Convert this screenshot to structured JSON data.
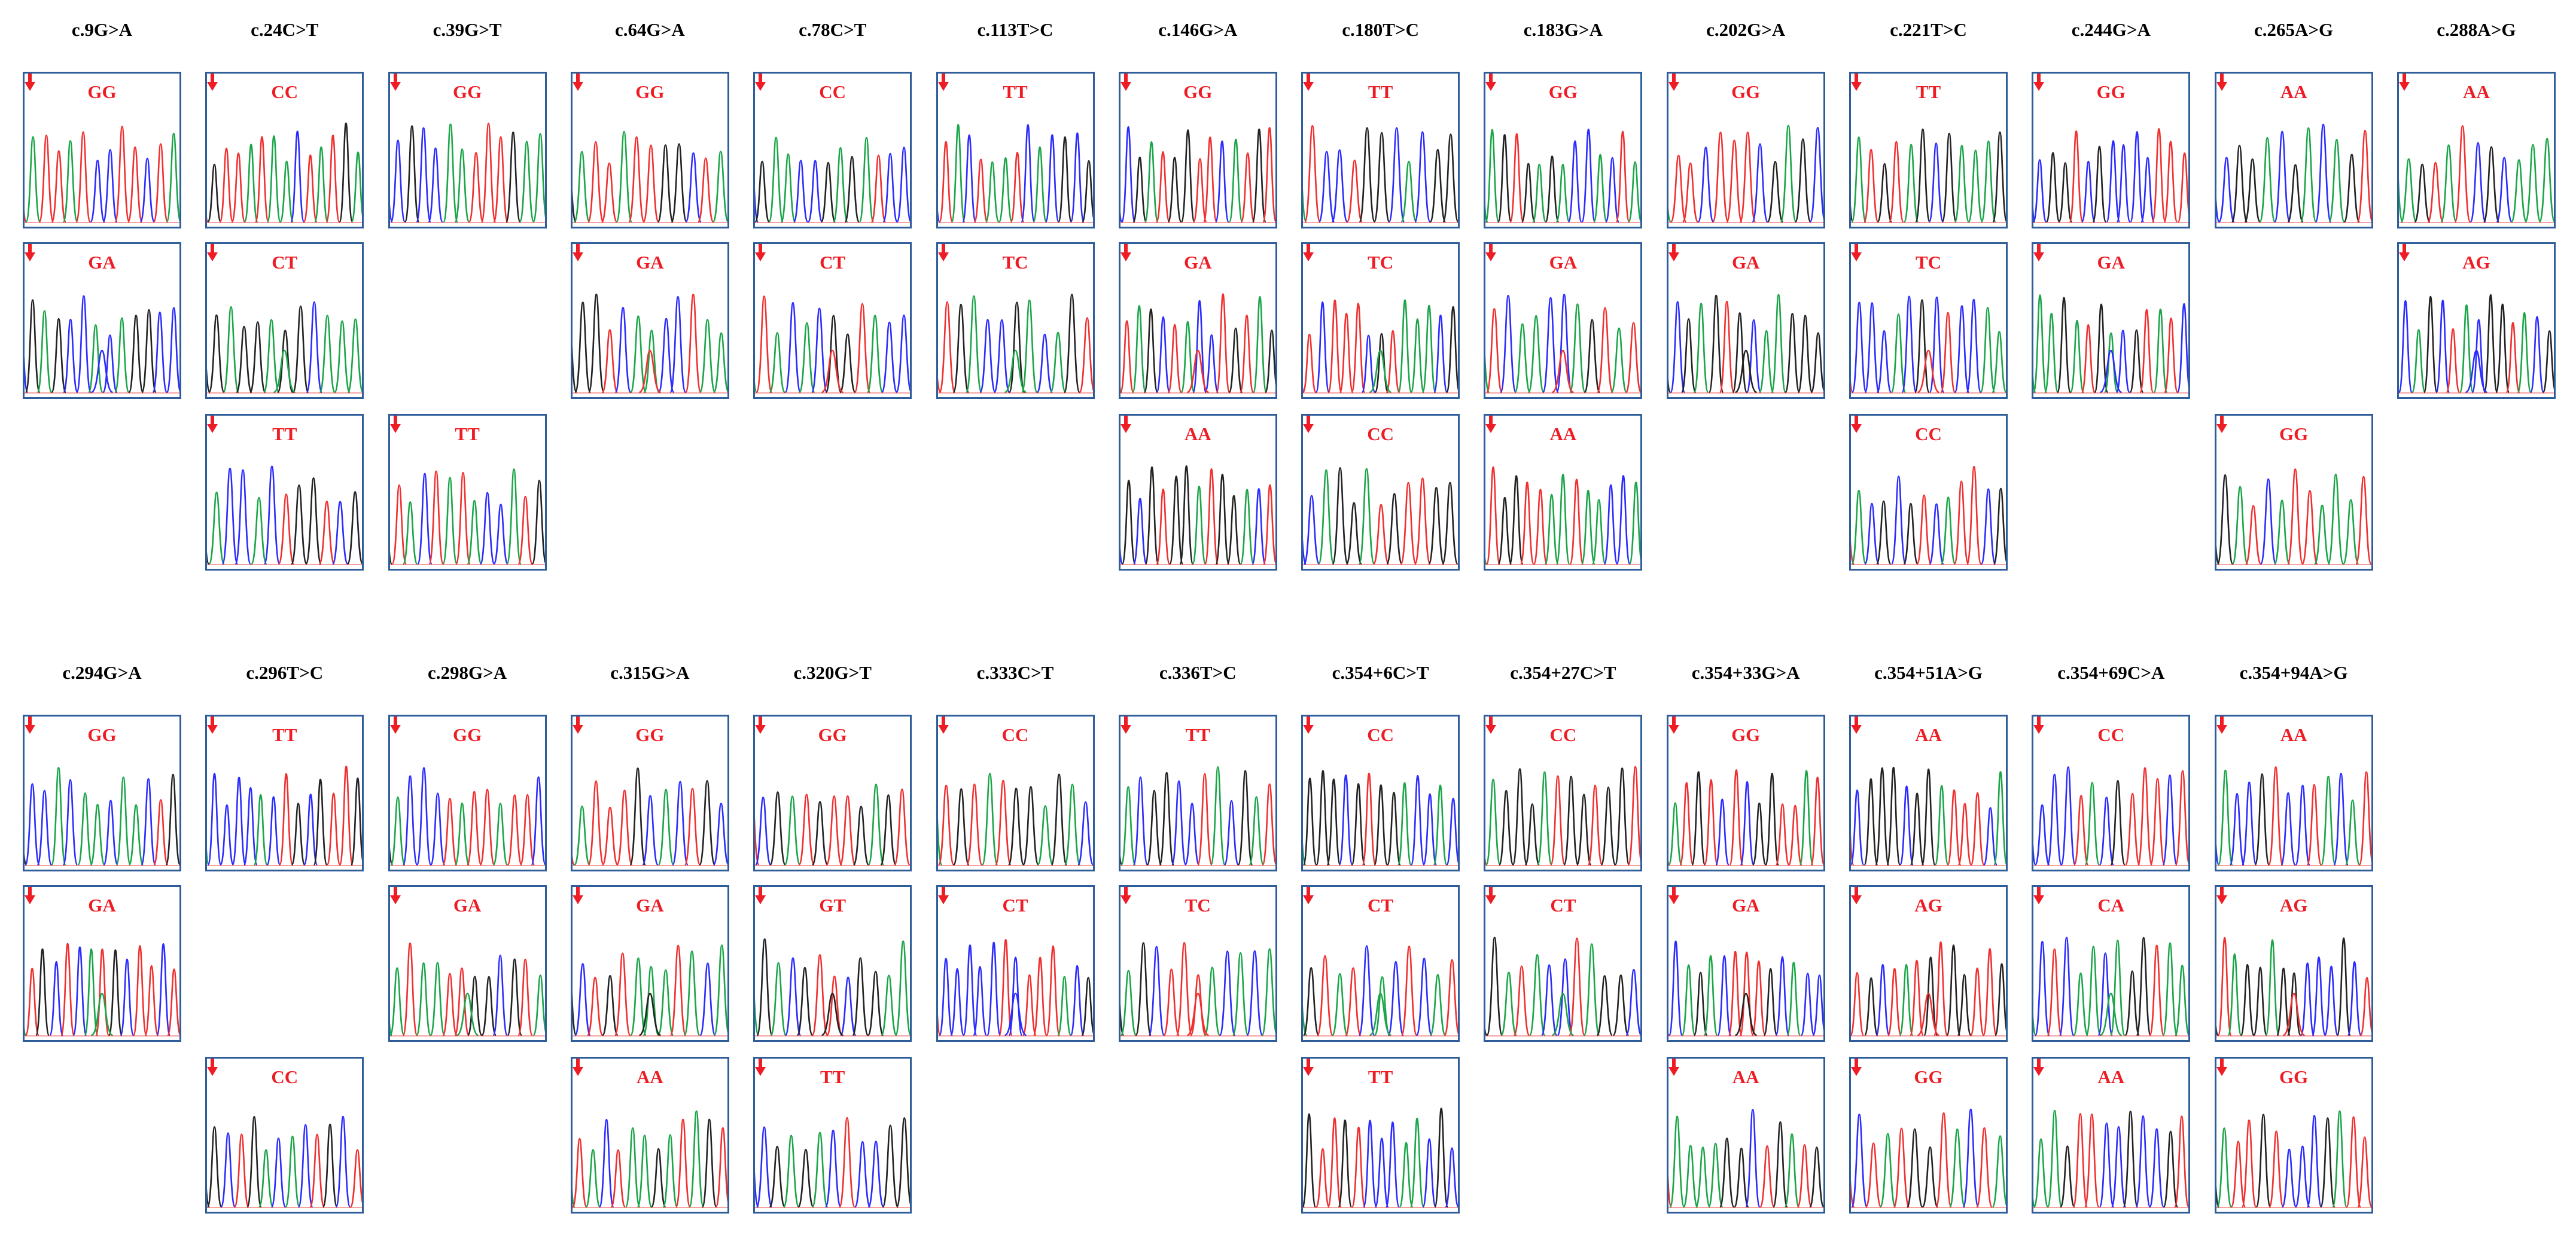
{
  "colors": {
    "genotype_label": "#ee1c24",
    "arrow": "#ee1c24",
    "panel_border": "#2e5d99",
    "trace_A": "#1aa548",
    "trace_C": "#2b2bff",
    "trace_G": "#222222",
    "trace_T": "#f03030"
  },
  "blocks": [
    {
      "variants": [
        {
          "name": "c.9G>A",
          "genotypes": [
            "GG",
            "GA",
            null
          ]
        },
        {
          "name": "c.24C>T",
          "genotypes": [
            "CC",
            "CT",
            "TT"
          ]
        },
        {
          "name": "c.39G>T",
          "genotypes": [
            "GG",
            null,
            "TT"
          ]
        },
        {
          "name": "c.64G>A",
          "genotypes": [
            "GG",
            "GA",
            null
          ]
        },
        {
          "name": "c.78C>T",
          "genotypes": [
            "CC",
            "CT",
            null
          ]
        },
        {
          "name": "c.113T>C",
          "genotypes": [
            "TT",
            "TC",
            null
          ]
        },
        {
          "name": "c.146G>A",
          "genotypes": [
            "GG",
            "GA",
            "AA"
          ]
        },
        {
          "name": "c.180T>C",
          "genotypes": [
            "TT",
            "TC",
            "CC"
          ]
        },
        {
          "name": "c.183G>A",
          "genotypes": [
            "GG",
            "GA",
            "AA"
          ]
        },
        {
          "name": "c.202G>A",
          "genotypes": [
            "GG",
            "GA",
            null
          ]
        },
        {
          "name": "c.221T>C",
          "genotypes": [
            "TT",
            "TC",
            "CC"
          ]
        },
        {
          "name": "c.244G>A",
          "genotypes": [
            "GG",
            "GA",
            null
          ]
        },
        {
          "name": "c.265A>G",
          "genotypes": [
            "AA",
            null,
            "GG"
          ]
        },
        {
          "name": "c.288A>G",
          "genotypes": [
            "AA",
            "AG",
            null
          ]
        }
      ]
    },
    {
      "variants": [
        {
          "name": "c.294G>A",
          "genotypes": [
            "GG",
            "GA",
            null
          ]
        },
        {
          "name": "c.296T>C",
          "genotypes": [
            "TT",
            null,
            "CC"
          ]
        },
        {
          "name": "c.298G>A",
          "genotypes": [
            "GG",
            "GA",
            null
          ]
        },
        {
          "name": "c.315G>A",
          "genotypes": [
            "GG",
            "GA",
            "AA"
          ]
        },
        {
          "name": "c.320G>T",
          "genotypes": [
            "GG",
            "GT",
            "TT"
          ]
        },
        {
          "name": "c.333C>T",
          "genotypes": [
            "CC",
            "CT",
            null
          ]
        },
        {
          "name": "c.336T>C",
          "genotypes": [
            "TT",
            "TC",
            null
          ]
        },
        {
          "name": "c.354+6C>T",
          "genotypes": [
            "CC",
            "CT",
            "TT"
          ]
        },
        {
          "name": "c.354+27C>T",
          "genotypes": [
            "CC",
            "CT",
            null
          ]
        },
        {
          "name": "c.354+33G>A",
          "genotypes": [
            "GG",
            "GA",
            "AA"
          ]
        },
        {
          "name": "c.354+51A>G",
          "genotypes": [
            "AA",
            "AG",
            "GG"
          ]
        },
        {
          "name": "c.354+69C>A",
          "genotypes": [
            "CC",
            "CA",
            "AA"
          ]
        },
        {
          "name": "c.354+94A>G",
          "genotypes": [
            "AA",
            "AG",
            "GG"
          ]
        }
      ]
    }
  ]
}
